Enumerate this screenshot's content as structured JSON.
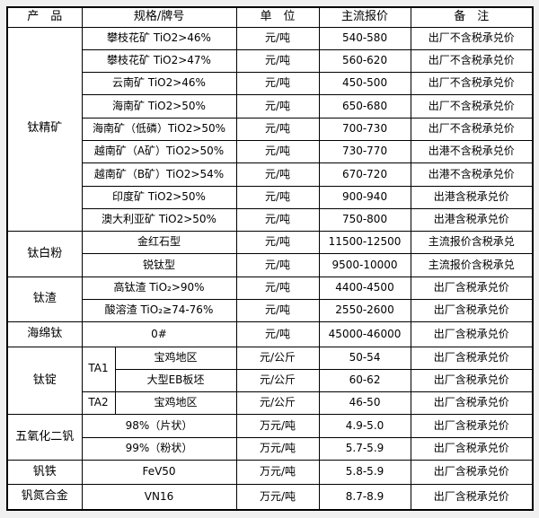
{
  "page": {
    "background_color": "#f0f0f0",
    "cell_background_color": "#ffffff",
    "border_color": "#000000",
    "text_color": "#000000"
  },
  "table": {
    "headers": [
      "产　品",
      "规格/牌号",
      "单　位",
      "主流报价",
      "备　注"
    ],
    "header_colspans": [
      1,
      2,
      1,
      1,
      1
    ],
    "groups": [
      {
        "product": "钛精矿",
        "rows": [
          {
            "spec": "攀枝花矿 TiO2>46%",
            "unit": "元/吨",
            "price": "540-580",
            "note": "出厂不含税承兑价"
          },
          {
            "spec": "攀枝花矿 TiO2>47%",
            "unit": "元/吨",
            "price": "560-620",
            "note": "出厂不含税承兑价"
          },
          {
            "spec": "云南矿 TiO2>46%",
            "unit": "元/吨",
            "price": "450-500",
            "note": "出厂不含税承兑价"
          },
          {
            "spec": "海南矿 TiO2>50%",
            "unit": "元/吨",
            "price": "650-680",
            "note": "出厂不含税承兑价"
          },
          {
            "spec": "海南矿（低磷）TiO2>50%",
            "unit": "元/吨",
            "price": "700-730",
            "note": "出厂不含税承兑价"
          },
          {
            "spec": "越南矿（A矿）TiO2>50%",
            "unit": "元/吨",
            "price": "730-770",
            "note": "出港不含税承兑价"
          },
          {
            "spec": "越南矿（B矿）TiO2>54%",
            "unit": "元/吨",
            "price": "670-720",
            "note": "出港不含税承兑价"
          },
          {
            "spec": "印度矿 TiO2>50%",
            "unit": "元/吨",
            "price": "900-940",
            "note": "出港含税承兑价"
          },
          {
            "spec": "澳大利亚矿 TiO2>50%",
            "unit": "元/吨",
            "price": "750-800",
            "note": "出港含税承兑价"
          }
        ]
      },
      {
        "product": "钛白粉",
        "rows": [
          {
            "spec": "金红石型",
            "unit": "元/吨",
            "price": "11500-12500",
            "note": "主流报价含税承兑"
          },
          {
            "spec": "锐钛型",
            "unit": "元/吨",
            "price": "9500-10000",
            "note": "主流报价含税承兑"
          }
        ]
      },
      {
        "product": "钛渣",
        "rows": [
          {
            "spec": "高钛渣 TiO₂>90%",
            "unit": "元/吨",
            "price": "4400-4500",
            "note": "出厂含税承兑价"
          },
          {
            "spec": "酸溶渣 TiO₂≥74-76%",
            "unit": "元/吨",
            "price": "2550-2600",
            "note": "出厂含税承兑价"
          }
        ]
      },
      {
        "product": "海绵钛",
        "rows": [
          {
            "spec": "0#",
            "unit": "元/吨",
            "price": "45000-46000",
            "note": "出厂含税承兑价"
          }
        ]
      },
      {
        "product": "钛锭",
        "rows": [
          {
            "grade": "TA1",
            "grade_rowspan": 2,
            "spec": "宝鸡地区",
            "unit": "元/公斤",
            "price": "50-54",
            "note": "出厂含税承兑价"
          },
          {
            "spec": "大型EB板坯",
            "unit": "元/公斤",
            "price": "60-62",
            "note": "出厂含税承兑价"
          },
          {
            "grade": "TA2",
            "grade_rowspan": 1,
            "spec": "宝鸡地区",
            "unit": "元/公斤",
            "price": "46-50",
            "note": "出厂含税承兑价"
          }
        ]
      },
      {
        "product": "五氧化二钒",
        "rows": [
          {
            "spec": "98%（片状）",
            "unit": "万元/吨",
            "price": "4.9-5.0",
            "note": "出厂含税承兑价"
          },
          {
            "spec": "99%（粉状）",
            "unit": "万元/吨",
            "price": "5.7-5.9",
            "note": "出厂含税承兑价"
          }
        ]
      },
      {
        "product": "钒铁",
        "rows": [
          {
            "spec": "FeV50",
            "unit": "万元/吨",
            "price": "5.8-5.9",
            "note": "出厂含税承兑价"
          }
        ]
      },
      {
        "product": "钒氮合金",
        "rows": [
          {
            "spec": "VN16",
            "unit": "万元/吨",
            "price": "8.7-8.9",
            "note": "出厂含税承兑价"
          }
        ]
      }
    ]
  }
}
